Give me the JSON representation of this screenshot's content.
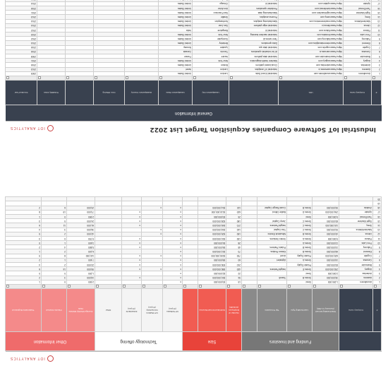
{
  "sheet1": {
    "title": "Industrial IoT Software Companies Acquisition Target List 2022",
    "brand": "IOT ANALYTICS",
    "section_label": "General Information",
    "columns": [
      "#",
      "Company name",
      "URL",
      "",
      "Headquarters City",
      "Headquarters State",
      "Headquarters Country",
      "Core Offering",
      "",
      "Tickability index",
      "Founded Year"
    ],
    "rows": [
      [
        "1",
        "Arundhmen",
        "https://www.arundhmen.com",
        "Industrial AI and Data",
        "London",
        "United States",
        "",
        "",
        "",
        "",
        "2009"
      ],
      [
        "2",
        "Awanea",
        "https://www.aweanea.io",
        "Industrial IoT analytics",
        "London",
        "Israel",
        "",
        "",
        "",
        "",
        "2013"
      ],
      [
        "3",
        "Asheritas",
        "https://www.asheritas.com",
        "Cloud-based platform",
        "Boston",
        "United States",
        "",
        "",
        "",
        "",
        "2016"
      ],
      [
        "4",
        "Augury",
        "https://www.augury.com",
        "Machine health diagnostics",
        "New York",
        "United States",
        "",
        "",
        "",
        "",
        "2011"
      ],
      [
        "5",
        "Braincube",
        "https://www.braincube.com",
        "Industrial data platform",
        "Issoire",
        "France",
        "",
        "",
        "",
        "",
        "2008"
      ],
      [
        "6",
        "Canvass",
        "https://www.canvass.io",
        "AI for industrial operations",
        "Toronto",
        "Canada",
        "",
        "",
        "",
        "",
        "2016"
      ],
      [
        "7",
        "Cognite",
        "https://www.cognite.com",
        "Industrial data ops",
        "Lysaker",
        "Norway",
        "",
        "",
        "",
        "",
        "2016"
      ],
      [
        "8",
        "Element",
        "https://www.elementanalytics.com",
        "Data operations",
        "Berkeley",
        "United States",
        "",
        "",
        "",
        "",
        "2014"
      ],
      [
        "9",
        "Falkonry",
        "https://www.falkonry.com",
        "Time series AI",
        "Sunnyvale",
        "United States",
        "",
        "",
        "",
        "",
        "2012"
      ],
      [
        "10",
        "Fero Labs",
        "https://www.ferolabs.com",
        "Industrial machine learning",
        "New York",
        "United States",
        "",
        "",
        "",
        "",
        "2015"
      ],
      [
        "11",
        "Flutura",
        "https://www.flutura.com",
        "Industrial AI",
        "Bangalore",
        "India",
        "",
        "",
        "",
        "",
        "2012"
      ],
      [
        "12",
        "Litmus",
        "https://www.litmus.io",
        "Industrial edge platform",
        "San Jose",
        "United States",
        "",
        "",
        "",
        "",
        "2014"
      ],
      [
        "13",
        "MachineMetrics",
        "https://www.machinemetrics.com",
        "Manufacturing analytics",
        "Northampton",
        "United States",
        "",
        "",
        "",
        "",
        "2014"
      ],
      [
        "14",
        "Seeq",
        "https://www.seeq.com",
        "Process analytics",
        "Seattle",
        "United States",
        "",
        "",
        "",
        "",
        "2013"
      ],
      [
        "15",
        "Sight Machine",
        "https://www.sightmachine.com",
        "Manufacturing data",
        "San Francisco",
        "United States",
        "",
        "",
        "",
        "",
        "2011"
      ],
      [
        "16",
        "TwinThread",
        "https://www.twinthread.com",
        "Predictive operations",
        "Ann Arbor",
        "United States",
        "",
        "",
        "",
        "",
        "2016"
      ],
      [
        "17",
        "Uptake",
        "https://www.uptake.com",
        "Industrial AI",
        "Chicago",
        "United States",
        "",
        "",
        "",
        "",
        "2014"
      ],
      [
        "18",
        "Zededa",
        "https://www.zededa.com",
        "Edge orchestration",
        "San Jose",
        "United States",
        "",
        "",
        "",
        "",
        "2016"
      ]
    ]
  },
  "sheet2": {
    "brand": "IOT ANALYTICS",
    "groups": [
      {
        "label": "",
        "cls": "company",
        "span": 2
      },
      {
        "label": "Funding and Investors",
        "cls": "fund",
        "span": 4
      },
      {
        "label": "Size",
        "cls": "size",
        "span": 3
      },
      {
        "label": "Technology offering",
        "cls": "tech",
        "span": 4
      },
      {
        "label": "Other Information",
        "cls": "other",
        "span": 3
      }
    ],
    "subheaders": [
      {
        "label": "#",
        "cls": "company"
      },
      {
        "label": "Company name",
        "cls": "company"
      },
      {
        "label": "Total Funding Amount (Currency in USD)",
        "cls": "fund"
      },
      {
        "label": "Last Funding Type",
        "cls": "fund"
      },
      {
        "label": "Top 5 Investors",
        "cls": "fund"
      },
      {
        "label": "",
        "cls": "fund"
      },
      {
        "label": "Number of Employees (LinkedIn)",
        "cls": "size"
      },
      {
        "label": "Estimated Annual Revenue",
        "cls": "size"
      },
      {
        "label": "",
        "cls": "size"
      },
      {
        "label": "IoT Software (X=yes)",
        "cls": "tech"
      },
      {
        "label": "IoT Platform Connectivity (X=yes)",
        "cls": "tech"
      },
      {
        "label": "Industrial AI (X=yes)",
        "cls": "tech"
      },
      {
        "label": "Other",
        "cls": "tech"
      },
      {
        "label": "Average Monthly Website Visits",
        "cls": "other"
      },
      {
        "label": "Patents Granted",
        "cls": "other"
      },
      {
        "label": "Trademarks Registered",
        "cls": "other"
      }
    ],
    "rows": [
      [
        "1",
        "Arundhmen",
        "1,250,000",
        "Seed",
        "",
        "",
        "15",
        "$3,000,000",
        "",
        "x",
        "",
        "",
        "",
        "2,500",
        "0",
        "1"
      ],
      [
        "2",
        "Awanea",
        "35,000,000",
        "Series B",
        "Team8",
        "",
        "94",
        "$10,000,000",
        "",
        "x",
        "",
        "x",
        "",
        "18,000",
        "3",
        "2"
      ],
      [
        "3",
        "Asheritas",
        "2,000,000",
        "Seed",
        "",
        "",
        "22",
        "$2,000,000",
        "",
        "x",
        "",
        "",
        "",
        "1,200",
        "0",
        "0"
      ],
      [
        "4",
        "Augury",
        "292,000,000",
        "Series E",
        "Insight Partners",
        "",
        "420",
        "$80,000,000",
        "",
        "x",
        "x",
        "x",
        "",
        "95,000",
        "14",
        "6"
      ],
      [
        "5",
        "Braincube",
        "83,000,000",
        "Private Equity",
        "",
        "",
        "210",
        "$30,000,000",
        "",
        "x",
        "",
        "x",
        "",
        "22,000",
        "2",
        "4"
      ],
      [
        "6",
        "Canvass",
        "18,000,000",
        "Series A",
        "Alphabet",
        "",
        "60",
        "$8,000,000",
        "",
        "x",
        "",
        "x",
        "",
        "7,400",
        "1",
        "2"
      ],
      [
        "7",
        "Cognite",
        "625,000,000",
        "Private Equity",
        "Accel",
        "",
        "700",
        "$150,000,000",
        "",
        "x",
        "x",
        "x",
        "",
        "110,000",
        "8",
        "9"
      ],
      [
        "8",
        "Element",
        "68,000,000",
        "Series B",
        "Kleiner Perkins",
        "",
        "70",
        "$12,000,000",
        "",
        "x",
        "",
        "",
        "",
        "6,100",
        "2",
        "1"
      ],
      [
        "9",
        "Falkonry",
        "15,000,000",
        "Series B",
        "Polaris Partners",
        "",
        "45",
        "$6,000,000",
        "",
        "x",
        "",
        "x",
        "",
        "5,800",
        "4",
        "2"
      ],
      [
        "10",
        "Fero Labs",
        "10,000,000",
        "Series A",
        "",
        "",
        "28",
        "$4,000,000",
        "",
        "x",
        "",
        "x",
        "",
        "3,400",
        "1",
        "0"
      ],
      [
        "11",
        "Flutura",
        "9,000,000",
        "Series A",
        "Vertex Ventures",
        "",
        "130",
        "$10,000,000",
        "",
        "x",
        "",
        "x",
        "",
        "9,700",
        "0",
        "3"
      ],
      [
        "12",
        "Litmus",
        "40,000,000",
        "Series B",
        "Mitsubishi Electric",
        "",
        "150",
        "$25,000,000",
        "",
        "x",
        "x",
        "",
        "",
        "42,000",
        "2",
        "5"
      ],
      [
        "13",
        "MachineMetrics",
        "50,000,000",
        "Series C",
        "Tola Capital",
        "",
        "140",
        "$18,000,000",
        "",
        "x",
        "x",
        "",
        "",
        "36,000",
        "3",
        "4"
      ],
      [
        "14",
        "Seeq",
        "115,000,000",
        "Series C",
        "Insight Partners",
        "",
        "270",
        "$45,000,000",
        "",
        "x",
        "",
        "x",
        "",
        "61,000",
        "11",
        "6"
      ],
      [
        "15",
        "Sight Machine",
        "80,000,000",
        "Series C",
        "Jump Capital",
        "",
        "180",
        "$28,000,000",
        "",
        "x",
        "",
        "x",
        "",
        "24,000",
        "5",
        "3"
      ],
      [
        "16",
        "TwinThread",
        "5,000,000",
        "Seed",
        "",
        "",
        "25",
        "$3,500,000",
        "",
        "x",
        "",
        "x",
        "",
        "2,900",
        "0",
        "1"
      ],
      [
        "17",
        "Uptake",
        "294,000,000",
        "Series D",
        "Baillie Gifford",
        "",
        "620",
        "$110,000,000",
        "",
        "x",
        "",
        "x",
        "",
        "73,000",
        "19",
        "8"
      ],
      [
        "18",
        "Zededa",
        "55,000,000",
        "Series B",
        "Coast Range Capital",
        "",
        "110",
        "$14,000,000",
        "",
        "x",
        "x",
        "",
        "",
        "20,000",
        "6",
        "2"
      ],
      [
        "19",
        "",
        "",
        "",
        "",
        "",
        "",
        "",
        "",
        "",
        "",
        "",
        "",
        "",
        "",
        ""
      ],
      [
        "20",
        "",
        "",
        "",
        "",
        "",
        "",
        "",
        "",
        "",
        "",
        "",
        "",
        "",
        "",
        ""
      ]
    ]
  }
}
